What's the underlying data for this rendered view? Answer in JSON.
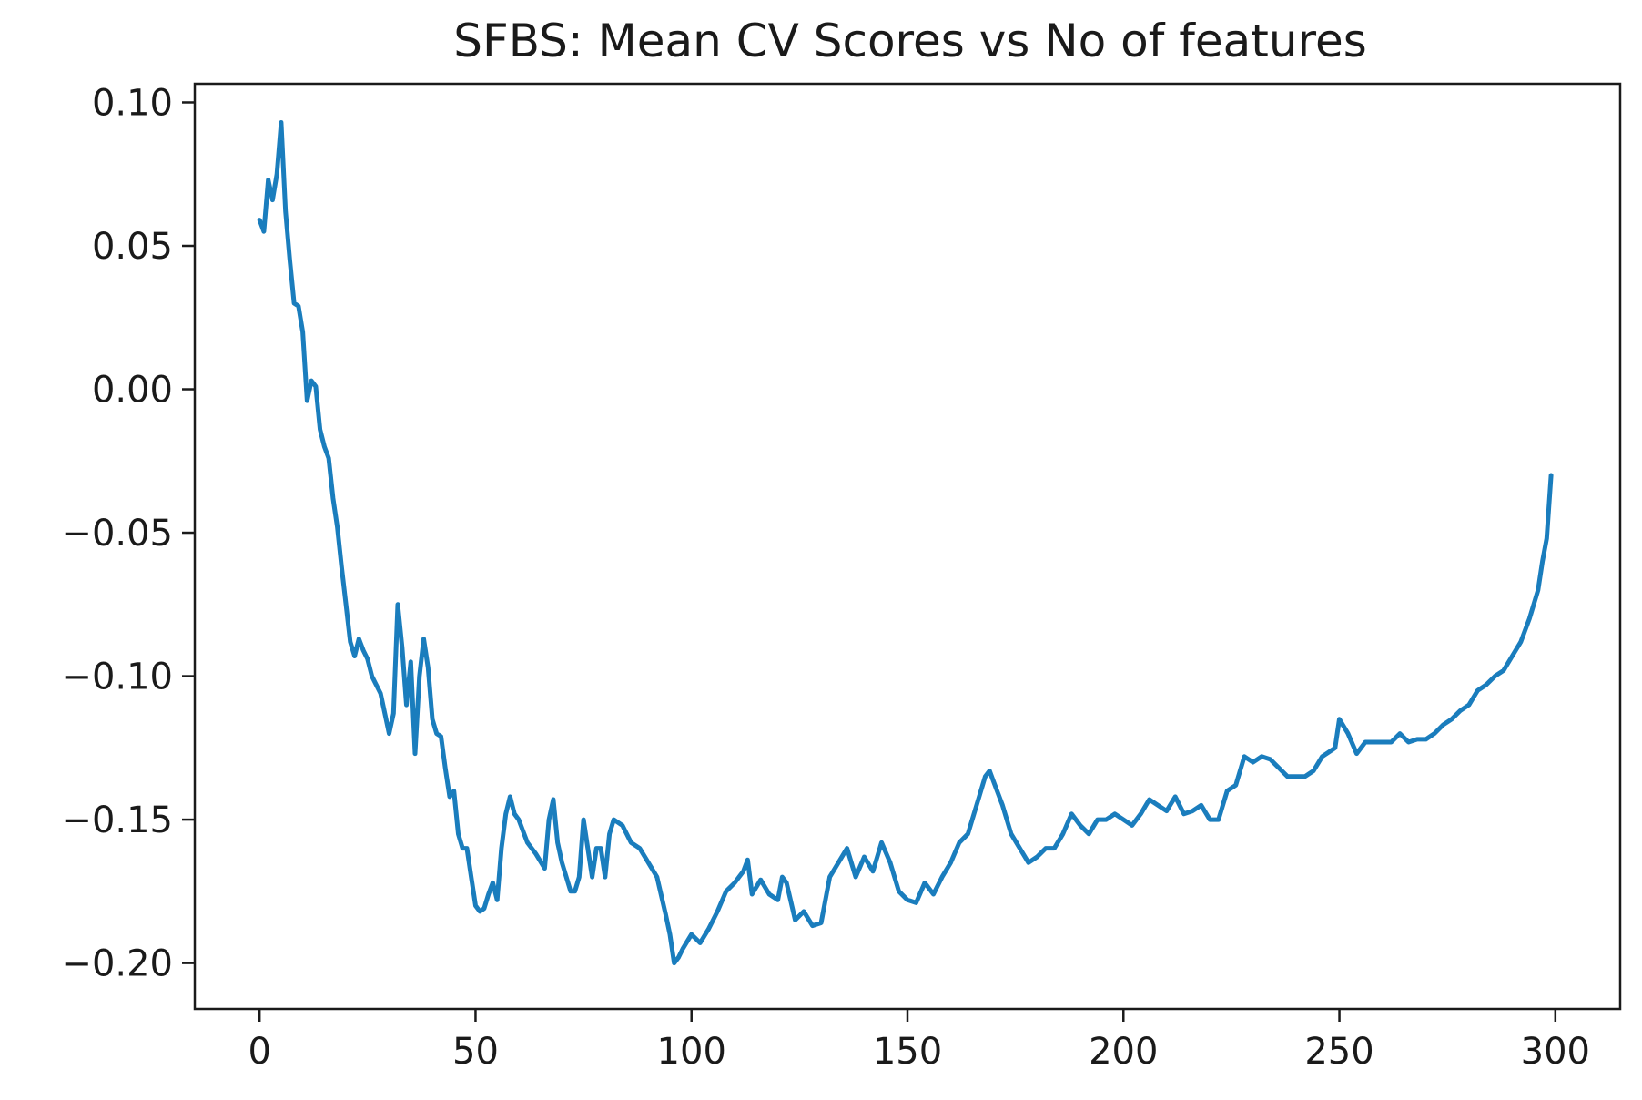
{
  "chart_data": {
    "type": "line",
    "title": "SFBS: Mean CV Scores vs No of features",
    "xlabel": "",
    "ylabel": "",
    "xlim": [
      -15,
      315
    ],
    "ylim": [
      -0.216,
      0.1065
    ],
    "grid": false,
    "x_ticks": [
      0,
      50,
      100,
      150,
      200,
      250,
      300
    ],
    "x_tick_labels": [
      "0",
      "50",
      "100",
      "150",
      "200",
      "250",
      "300"
    ],
    "y_ticks": [
      0.1,
      0.05,
      0.0,
      -0.05,
      -0.1,
      -0.15,
      -0.2
    ],
    "y_tick_labels": [
      "0.10",
      "0.05",
      "0.00",
      "−0.05",
      "−0.10",
      "−0.15",
      "−0.20"
    ],
    "colors": {
      "series": "#1a7dbd",
      "axes": "#1a1a1a"
    },
    "series": [
      {
        "x": [
          0,
          1,
          2,
          3,
          4,
          5,
          6,
          7,
          8,
          9,
          10,
          11,
          12,
          13,
          14,
          15,
          16,
          17,
          18,
          19,
          20,
          21,
          22,
          23,
          24,
          25,
          26,
          27,
          28,
          29,
          30,
          31,
          32,
          33,
          34,
          35,
          36,
          37,
          38,
          39,
          40,
          41,
          42,
          43,
          44,
          45,
          46,
          47,
          48,
          49,
          50,
          51,
          52,
          53,
          54,
          55,
          56,
          57,
          58,
          59,
          60,
          62,
          64,
          66,
          67,
          68,
          69,
          70,
          72,
          73,
          74,
          75,
          76,
          77,
          78,
          79,
          80,
          81,
          82,
          84,
          86,
          88,
          90,
          92,
          94,
          95,
          96,
          97,
          98,
          100,
          102,
          104,
          106,
          108,
          110,
          111,
          112,
          113,
          114,
          116,
          118,
          120,
          121,
          122,
          124,
          126,
          128,
          130,
          132,
          134,
          136,
          138,
          140,
          142,
          144,
          146,
          148,
          150,
          152,
          154,
          156,
          158,
          160,
          162,
          164,
          166,
          168,
          169,
          170,
          172,
          174,
          176,
          178,
          180,
          182,
          184,
          186,
          188,
          190,
          192,
          194,
          196,
          198,
          200,
          202,
          204,
          206,
          208,
          210,
          212,
          214,
          216,
          218,
          220,
          222,
          224,
          226,
          228,
          230,
          232,
          234,
          236,
          238,
          240,
          242,
          244,
          246,
          248,
          249,
          250,
          252,
          254,
          256,
          258,
          260,
          262,
          264,
          266,
          268,
          270,
          272,
          274,
          276,
          278,
          280,
          282,
          284,
          286,
          288,
          290,
          292,
          294,
          296,
          297,
          298,
          299
        ],
        "y": [
          0.059,
          0.055,
          0.073,
          0.066,
          0.075,
          0.093,
          0.062,
          0.045,
          0.03,
          0.029,
          0.02,
          -0.004,
          0.003,
          0.001,
          -0.014,
          -0.02,
          -0.024,
          -0.038,
          -0.048,
          -0.062,
          -0.075,
          -0.088,
          -0.093,
          -0.087,
          -0.091,
          -0.094,
          -0.1,
          -0.103,
          -0.106,
          -0.113,
          -0.12,
          -0.113,
          -0.075,
          -0.09,
          -0.11,
          -0.095,
          -0.127,
          -0.1,
          -0.087,
          -0.097,
          -0.115,
          -0.12,
          -0.121,
          -0.132,
          -0.142,
          -0.14,
          -0.155,
          -0.16,
          -0.16,
          -0.17,
          -0.18,
          -0.182,
          -0.181,
          -0.176,
          -0.172,
          -0.178,
          -0.16,
          -0.148,
          -0.142,
          -0.148,
          -0.15,
          -0.158,
          -0.162,
          -0.167,
          -0.15,
          -0.143,
          -0.158,
          -0.165,
          -0.175,
          -0.175,
          -0.17,
          -0.15,
          -0.16,
          -0.17,
          -0.16,
          -0.16,
          -0.17,
          -0.155,
          -0.15,
          -0.152,
          -0.158,
          -0.16,
          -0.165,
          -0.17,
          -0.183,
          -0.19,
          -0.2,
          -0.198,
          -0.195,
          -0.19,
          -0.193,
          -0.188,
          -0.182,
          -0.175,
          -0.172,
          -0.17,
          -0.168,
          -0.164,
          -0.176,
          -0.171,
          -0.176,
          -0.178,
          -0.17,
          -0.172,
          -0.185,
          -0.182,
          -0.187,
          -0.186,
          -0.17,
          -0.165,
          -0.16,
          -0.17,
          -0.163,
          -0.168,
          -0.158,
          -0.165,
          -0.175,
          -0.178,
          -0.179,
          -0.172,
          -0.176,
          -0.17,
          -0.165,
          -0.158,
          -0.155,
          -0.145,
          -0.135,
          -0.133,
          -0.137,
          -0.145,
          -0.155,
          -0.16,
          -0.165,
          -0.163,
          -0.16,
          -0.16,
          -0.155,
          -0.148,
          -0.152,
          -0.155,
          -0.15,
          -0.15,
          -0.148,
          -0.15,
          -0.152,
          -0.148,
          -0.143,
          -0.145,
          -0.147,
          -0.142,
          -0.148,
          -0.147,
          -0.145,
          -0.15,
          -0.15,
          -0.14,
          -0.138,
          -0.128,
          -0.13,
          -0.128,
          -0.129,
          -0.132,
          -0.135,
          -0.135,
          -0.135,
          -0.133,
          -0.128,
          -0.126,
          -0.125,
          -0.115,
          -0.12,
          -0.127,
          -0.123,
          -0.123,
          -0.123,
          -0.123,
          -0.12,
          -0.123,
          -0.122,
          -0.122,
          -0.12,
          -0.117,
          -0.115,
          -0.112,
          -0.11,
          -0.105,
          -0.103,
          -0.1,
          -0.098,
          -0.093,
          -0.088,
          -0.08,
          -0.07,
          -0.06,
          -0.052,
          -0.03
        ]
      }
    ]
  }
}
